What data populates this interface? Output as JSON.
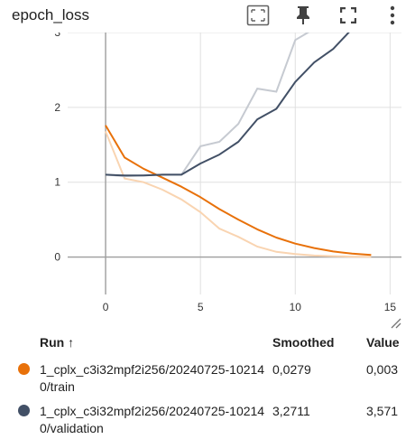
{
  "header": {
    "title": "epoch_loss",
    "icons": [
      "fit-domain-icon",
      "pin-icon",
      "fullscreen-icon",
      "more-vert-icon"
    ]
  },
  "chart_data": {
    "type": "line",
    "x_ticks": [
      "0",
      "5",
      "10",
      "15"
    ],
    "y_ticks": [
      "0",
      "1",
      "2",
      "3"
    ],
    "xlim": [
      -2,
      15.6
    ],
    "ylim": [
      -0.5,
      3.0
    ],
    "series": [
      {
        "name": "1_cplx_c3i32mpf2i256/20240725-102140/train",
        "color": "#e8710a",
        "raw_color": "#f9d4b1",
        "x": [
          0,
          1,
          2,
          3,
          4,
          5,
          6,
          7,
          8,
          9,
          10,
          11,
          12,
          13,
          14
        ],
        "raw": [
          1.68,
          1.05,
          1.0,
          0.9,
          0.77,
          0.6,
          0.38,
          0.27,
          0.14,
          0.07,
          0.04,
          0.02,
          0.012,
          0.006,
          0.003
        ],
        "smoothed": [
          1.76,
          1.33,
          1.18,
          1.06,
          0.94,
          0.8,
          0.64,
          0.5,
          0.37,
          0.26,
          0.18,
          0.12,
          0.075,
          0.045,
          0.028
        ]
      },
      {
        "name": "1_cplx_c3i32mpf2i256/20240725-102140/validation",
        "color": "#425066",
        "raw_color": "#c6cad1",
        "x": [
          0,
          1,
          2,
          3,
          4,
          5,
          6,
          7,
          8,
          9,
          10,
          11,
          12,
          13,
          14
        ],
        "raw": [
          1.1,
          1.08,
          1.09,
          1.1,
          1.1,
          1.48,
          1.54,
          1.78,
          2.25,
          2.21,
          2.9,
          3.05,
          null,
          null,
          null
        ],
        "smoothed": [
          1.1,
          1.09,
          1.09,
          1.1,
          1.1,
          1.25,
          1.37,
          1.54,
          1.84,
          1.98,
          2.34,
          2.6,
          2.78,
          3.05,
          null
        ]
      }
    ]
  },
  "table": {
    "columns": {
      "run": "Run",
      "sort_arrow": "↑",
      "smoothed": "Smoothed",
      "value": "Value"
    },
    "rows": [
      {
        "color": "#e8710a",
        "name": "1_cplx_c3i32mpf2i256/20240725-102140/train",
        "smoothed": "0,0279",
        "value": "0,003"
      },
      {
        "color": "#425066",
        "name": "1_cplx_c3i32mpf2i256/20240725-102140/validation",
        "smoothed": "3,2711",
        "value": "3,571"
      }
    ]
  }
}
